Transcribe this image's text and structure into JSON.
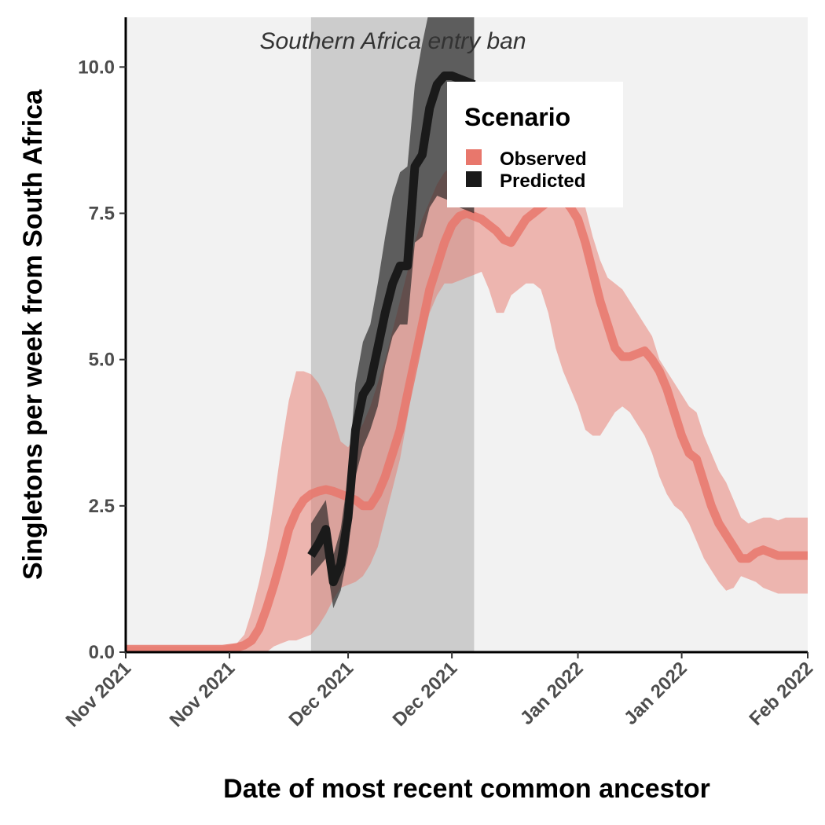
{
  "chart_data": {
    "type": "line",
    "xlabel": "Date of most recent common ancestor",
    "ylabel": "Singletons per week from South Africa",
    "x_ticks": [
      {
        "x": 0,
        "label": "Nov 2021"
      },
      {
        "x": 14,
        "label": "Nov 2021"
      },
      {
        "x": 30,
        "label": "Dec 2021"
      },
      {
        "x": 44,
        "label": "Dec 2021"
      },
      {
        "x": 61,
        "label": "Jan 2022"
      },
      {
        "x": 75,
        "label": "Jan 2022"
      },
      {
        "x": 92,
        "label": "Feb 2022"
      }
    ],
    "xlim": [
      0,
      92
    ],
    "y_ticks": [
      {
        "y": 0,
        "label": "0.0"
      },
      {
        "y": 2.5,
        "label": "2.5"
      },
      {
        "y": 5,
        "label": "5.0"
      },
      {
        "y": 7.5,
        "label": "7.5"
      },
      {
        "y": 10,
        "label": "10.0"
      }
    ],
    "ylim": [
      0,
      10.85
    ],
    "annotation": {
      "label": "Southern Africa entry ban",
      "x_start": 25,
      "x_end": 47
    },
    "legend": {
      "title": "Scenario",
      "position": "top-right-inside"
    },
    "colors": {
      "panel": "#f2f2f2",
      "ban_band": "#cccccc",
      "observed": "#e8776c",
      "predicted": "#1a1a1a"
    },
    "series": [
      {
        "name": "Observed",
        "x": [
          0,
          13,
          15,
          16,
          17,
          18,
          19,
          20,
          21,
          22,
          23,
          24,
          25,
          26,
          27,
          28,
          29,
          30,
          31,
          32,
          33,
          34,
          35,
          36,
          37,
          38,
          39,
          40,
          41,
          42,
          43,
          44,
          45,
          46,
          47,
          48,
          49,
          50,
          51,
          52,
          53,
          54,
          55,
          56,
          57,
          58,
          59,
          60,
          61,
          62,
          63,
          64,
          65,
          66,
          67,
          68,
          69,
          70,
          71,
          72,
          73,
          74,
          75,
          76,
          77,
          78,
          79,
          80,
          81,
          82,
          83,
          84,
          85,
          86,
          87,
          88,
          89,
          90,
          91,
          92
        ],
        "y": [
          0.05,
          0.05,
          0.08,
          0.12,
          0.2,
          0.4,
          0.75,
          1.15,
          1.6,
          2.1,
          2.4,
          2.6,
          2.7,
          2.75,
          2.78,
          2.75,
          2.7,
          2.65,
          2.6,
          2.5,
          2.5,
          2.7,
          3.0,
          3.4,
          3.8,
          4.4,
          5.0,
          5.6,
          6.2,
          6.6,
          7.0,
          7.3,
          7.45,
          7.5,
          7.45,
          7.4,
          7.3,
          7.2,
          7.05,
          7.0,
          7.2,
          7.4,
          7.5,
          7.6,
          7.7,
          7.8,
          7.75,
          7.6,
          7.4,
          7.0,
          6.5,
          6.0,
          5.6,
          5.2,
          5.05,
          5.05,
          5.1,
          5.15,
          5.0,
          4.8,
          4.5,
          4.1,
          3.7,
          3.4,
          3.3,
          2.9,
          2.5,
          2.2,
          2.0,
          1.8,
          1.6,
          1.6,
          1.7,
          1.75,
          1.7,
          1.65,
          1.65,
          1.65,
          1.65,
          1.65
        ],
        "lower": [
          0.0,
          0.0,
          0.0,
          0.0,
          0.0,
          0.0,
          0.0,
          0.1,
          0.15,
          0.2,
          0.2,
          0.25,
          0.3,
          0.45,
          0.65,
          0.9,
          1.1,
          1.15,
          1.2,
          1.3,
          1.5,
          1.8,
          2.3,
          2.8,
          3.3,
          4.0,
          4.8,
          5.3,
          5.8,
          6.1,
          6.3,
          6.3,
          6.35,
          6.4,
          6.45,
          6.5,
          6.2,
          5.8,
          5.8,
          6.1,
          6.2,
          6.3,
          6.3,
          6.2,
          5.8,
          5.2,
          4.8,
          4.5,
          4.2,
          3.8,
          3.7,
          3.7,
          3.9,
          4.1,
          4.2,
          4.1,
          3.9,
          3.7,
          3.4,
          3.0,
          2.7,
          2.5,
          2.4,
          2.2,
          1.9,
          1.6,
          1.4,
          1.2,
          1.05,
          1.1,
          1.3,
          1.25,
          1.2,
          1.1,
          1.05,
          1.0,
          1.0,
          1.0,
          1.0,
          1.0
        ],
        "upper": [
          0.1,
          0.1,
          0.15,
          0.3,
          0.7,
          1.2,
          1.8,
          2.6,
          3.5,
          4.3,
          4.8,
          4.8,
          4.75,
          4.6,
          4.35,
          4.0,
          3.6,
          3.5,
          3.7,
          3.9,
          4.2,
          4.6,
          5.0,
          5.5,
          6.0,
          6.5,
          7.0,
          7.4,
          7.7,
          8.0,
          8.2,
          8.3,
          8.2,
          8.1,
          8.0,
          8.0,
          8.1,
          8.2,
          8.3,
          8.35,
          8.4,
          8.4,
          8.3,
          8.2,
          8.2,
          8.3,
          8.4,
          8.3,
          8.0,
          7.6,
          7.1,
          6.7,
          6.4,
          6.3,
          6.2,
          6.0,
          5.8,
          5.6,
          5.4,
          5.0,
          4.8,
          4.6,
          4.4,
          4.2,
          4.1,
          3.7,
          3.4,
          3.1,
          2.9,
          2.6,
          2.3,
          2.2,
          2.25,
          2.3,
          2.3,
          2.25,
          2.3,
          2.3,
          2.3,
          2.3
        ]
      },
      {
        "name": "Predicted",
        "x": [
          25,
          26,
          27,
          28,
          29,
          30,
          31,
          32,
          33,
          34,
          35,
          36,
          37,
          38,
          39,
          40,
          41,
          42,
          43,
          44,
          45,
          46,
          47
        ],
        "y": [
          1.65,
          1.85,
          2.1,
          1.2,
          1.5,
          2.3,
          3.8,
          4.4,
          4.6,
          5.2,
          5.8,
          6.3,
          6.6,
          6.6,
          8.3,
          8.5,
          9.3,
          9.7,
          9.85,
          9.85,
          9.8,
          9.75,
          9.7
        ],
        "lower": [
          1.3,
          1.45,
          1.6,
          0.75,
          1.05,
          1.7,
          3.0,
          3.5,
          3.8,
          4.2,
          4.9,
          5.4,
          5.6,
          5.6,
          7.0,
          7.1,
          7.6,
          7.8,
          7.75,
          7.7,
          7.6,
          7.55,
          7.5
        ],
        "upper": [
          2.2,
          2.4,
          2.6,
          1.65,
          2.1,
          3.0,
          4.6,
          5.3,
          5.6,
          6.3,
          7.1,
          7.8,
          8.2,
          8.3,
          9.7,
          10.4,
          11.0,
          11.5,
          11.8,
          11.8,
          11.8,
          11.8,
          11.8
        ]
      }
    ]
  }
}
